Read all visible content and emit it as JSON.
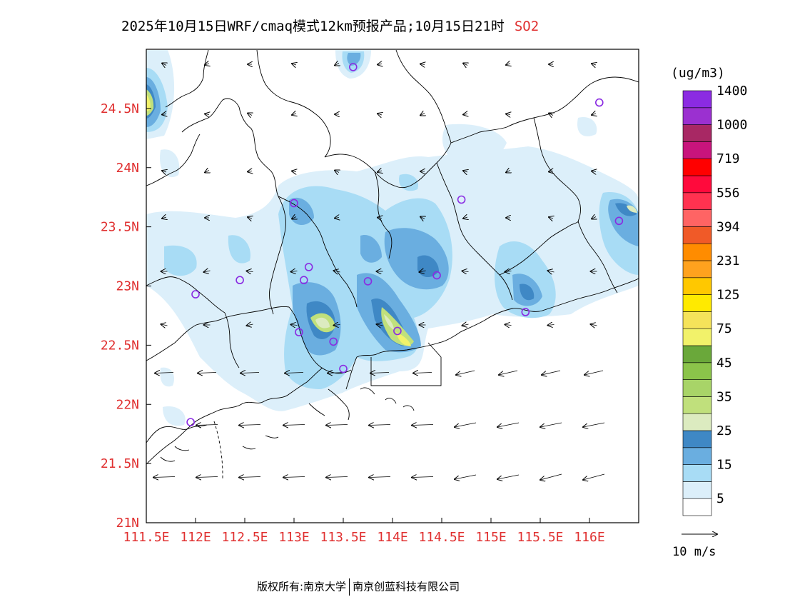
{
  "title": {
    "main": "2025年10月15日WRF/cmaq模式12km预报产品;10月15日21时",
    "species": "SO2"
  },
  "map": {
    "lon_range": [
      111.5,
      116.5
    ],
    "lat_range": [
      21.0,
      25.0
    ],
    "x_ticks": [
      {
        "lon": 111.5,
        "label": "111.5E"
      },
      {
        "lon": 112.0,
        "label": "112E"
      },
      {
        "lon": 112.5,
        "label": "112.5E"
      },
      {
        "lon": 113.0,
        "label": "113E"
      },
      {
        "lon": 113.5,
        "label": "113.5E"
      },
      {
        "lon": 114.0,
        "label": "114E"
      },
      {
        "lon": 114.5,
        "label": "114.5E"
      },
      {
        "lon": 115.0,
        "label": "115E"
      },
      {
        "lon": 115.5,
        "label": "115.5E"
      },
      {
        "lon": 116.0,
        "label": "116E"
      }
    ],
    "y_ticks": [
      {
        "lat": 21.0,
        "label": "21N"
      },
      {
        "lat": 21.5,
        "label": "21.5N"
      },
      {
        "lat": 22.0,
        "label": "22N"
      },
      {
        "lat": 22.5,
        "label": "22.5N"
      },
      {
        "lat": 23.0,
        "label": "23N"
      },
      {
        "lat": 23.5,
        "label": "23.5N"
      },
      {
        "lat": 24.0,
        "label": "24N"
      },
      {
        "lat": 24.5,
        "label": "24.5N"
      }
    ],
    "tick_color": "#e03030",
    "stations": [
      {
        "lon": 113.6,
        "lat": 24.85
      },
      {
        "lon": 116.1,
        "lat": 24.55
      },
      {
        "lon": 113.0,
        "lat": 23.7
      },
      {
        "lon": 114.7,
        "lat": 23.73
      },
      {
        "lon": 116.3,
        "lat": 23.55
      },
      {
        "lon": 113.15,
        "lat": 23.16
      },
      {
        "lon": 113.1,
        "lat": 23.05
      },
      {
        "lon": 112.45,
        "lat": 23.05
      },
      {
        "lon": 113.75,
        "lat": 23.04
      },
      {
        "lon": 114.45,
        "lat": 23.09
      },
      {
        "lon": 112.0,
        "lat": 22.93
      },
      {
        "lon": 115.35,
        "lat": 22.78
      },
      {
        "lon": 113.05,
        "lat": 22.61
      },
      {
        "lon": 114.05,
        "lat": 22.62
      },
      {
        "lon": 113.4,
        "lat": 22.53
      },
      {
        "lon": 113.5,
        "lat": 22.3
      },
      {
        "lon": 111.95,
        "lat": 21.85
      }
    ],
    "station_color": "#8a2be2"
  },
  "legend": {
    "unit": "(ug/m3)",
    "colors": [
      "#ffffff",
      "#dceffa",
      "#a8dcf5",
      "#6aaee0",
      "#3f88c5",
      "#dcebc0",
      "#c0e07c",
      "#a8d468",
      "#8bc44a",
      "#6aa83a",
      "#f2f26a",
      "#f5e35a",
      "#ffea00",
      "#ffc800",
      "#ffa21e",
      "#ff8c00",
      "#f05a28",
      "#ff6464",
      "#ff3250",
      "#ff0a3c",
      "#ff0000",
      "#c8147c",
      "#a82864",
      "#9b30d0",
      "#8b2be2"
    ],
    "labels": [
      "5",
      "15",
      "25",
      "35",
      "45",
      "75",
      "125",
      "231",
      "394",
      "556",
      "719",
      "1000",
      "1400"
    ]
  },
  "wind": {
    "ref_label": "10 m/s"
  },
  "footer": {
    "left": "版权所有:南京大学",
    "right": "南京创蓝科技有限公司"
  }
}
